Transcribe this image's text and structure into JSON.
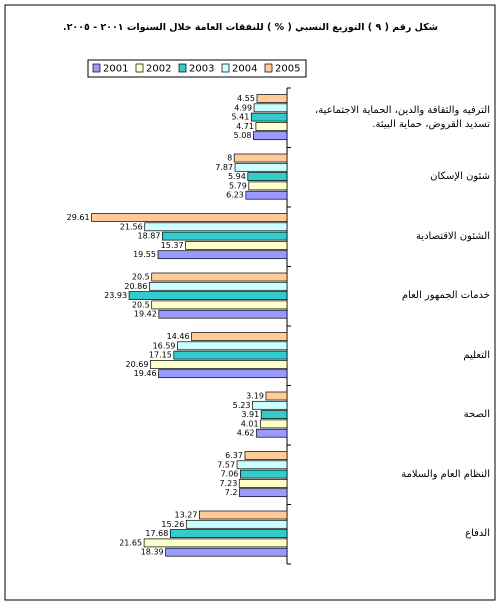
{
  "chart_data": {
    "type": "bar",
    "orientation": "horizontal",
    "title": "شكل رقم ( ٩ ) التوزيع النسبي ( % ) للنفقات العامة خلال السنوات ٢٠٠١ - ٢٠٠٥.",
    "categories": [
      "الترفيه والثقافة والدين، الحماية الاجتماعية، تسديد القروض، حماية البيئة.",
      "شئون الإسكان",
      "الشئون الاقتصادية",
      "خدمات الجمهور العام",
      "التعليم",
      "الصحة",
      "النظام العام والسلامة",
      "الدفاع"
    ],
    "series": [
      {
        "name": "2001",
        "color": "#9999ff",
        "values": [
          5.08,
          6.23,
          19.55,
          19.42,
          19.46,
          4.62,
          7.2,
          18.39
        ]
      },
      {
        "name": "2002",
        "color": "#ffffcc",
        "values": [
          4.71,
          5.79,
          15.37,
          20.5,
          20.69,
          4.01,
          7.23,
          21.65
        ]
      },
      {
        "name": "2003",
        "color": "#33cccc",
        "values": [
          5.41,
          5.94,
          18.87,
          23.93,
          17.15,
          3.91,
          7.06,
          17.68
        ]
      },
      {
        "name": "2004",
        "color": "#ccffff",
        "values": [
          4.99,
          7.87,
          21.56,
          20.86,
          16.59,
          5.23,
          7.57,
          15.26
        ]
      },
      {
        "name": "2005",
        "color": "#ffcc99",
        "values": [
          4.55,
          8,
          29.61,
          20.5,
          14.46,
          3.19,
          6.37,
          13.27
        ]
      }
    ]
  }
}
